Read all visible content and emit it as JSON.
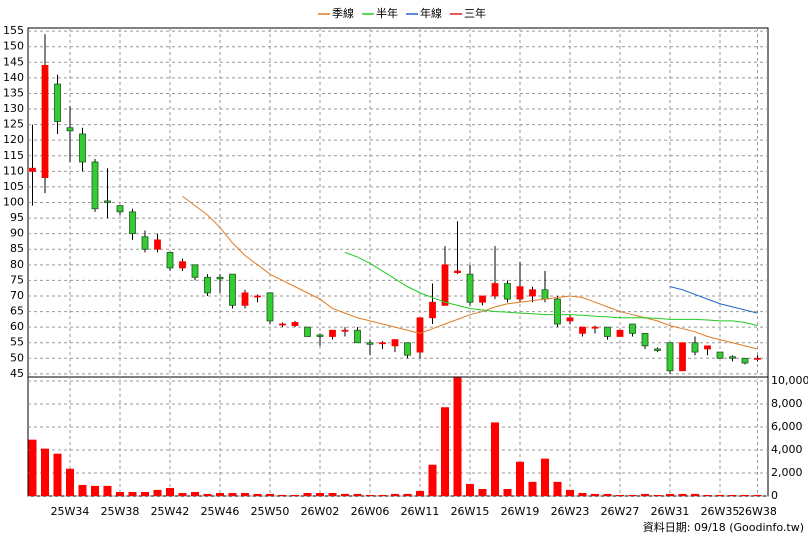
{
  "chart_data": {
    "type": "candlestick",
    "categories": [
      null,
      null,
      null,
      "25W34",
      null,
      null,
      null,
      "25W38",
      null,
      null,
      null,
      "25W42",
      null,
      null,
      null,
      "25W46",
      null,
      null,
      null,
      "25W50",
      null,
      null,
      null,
      "26W02",
      null,
      null,
      null,
      "26W06",
      null,
      null,
      null,
      "26W11",
      null,
      null,
      null,
      "26W15",
      null,
      null,
      null,
      "26W19",
      null,
      null,
      null,
      "26W23",
      null,
      null,
      null,
      "26W27",
      null,
      null,
      null,
      "26W31",
      null,
      null,
      null,
      "26W35",
      null,
      null,
      "26W38"
    ],
    "open": [
      110,
      108,
      138,
      124,
      122,
      113,
      100.5,
      99,
      97,
      89,
      85,
      84,
      79,
      80,
      76,
      76,
      77,
      67,
      70,
      71,
      61,
      60.5,
      60,
      57.5,
      57,
      59,
      59,
      55,
      55,
      54,
      55,
      52,
      63,
      67,
      77.5,
      77,
      68,
      70,
      74,
      69,
      70,
      72,
      69,
      62,
      58,
      60,
      60,
      57,
      61,
      58,
      53,
      55,
      46,
      55,
      53,
      52,
      50.5,
      50,
      50
    ],
    "high": [
      125,
      154,
      141,
      131,
      124,
      114,
      111,
      99,
      98,
      91,
      90,
      84,
      82,
      80,
      77,
      77,
      77,
      72,
      70.5,
      71,
      61.5,
      62,
      60,
      58,
      59,
      60,
      60,
      56,
      55.5,
      56,
      55,
      63,
      74,
      86,
      94,
      80,
      70,
      86,
      75,
      81,
      73,
      78,
      70,
      64,
      60,
      60.5,
      60,
      59,
      61,
      58,
      53.5,
      55,
      55,
      57,
      54,
      52,
      51,
      50,
      51
    ],
    "low": [
      99,
      103,
      122,
      113,
      110,
      97,
      95,
      96,
      88,
      84,
      84,
      78,
      78,
      75,
      70,
      71,
      66,
      66,
      68,
      61,
      60,
      60,
      57,
      54,
      56,
      57,
      55,
      51,
      53,
      52,
      50,
      50,
      61,
      67,
      77,
      67,
      67,
      69,
      68,
      68,
      68,
      68,
      60,
      61,
      57,
      58,
      56,
      57,
      57,
      53,
      52,
      45,
      46,
      51,
      51,
      50,
      49,
      48,
      49
    ],
    "close": [
      111,
      144,
      126,
      123,
      113,
      98,
      100,
      97,
      90,
      85,
      88,
      79,
      81,
      76,
      71,
      75.5,
      67,
      71,
      70,
      62,
      61,
      61.5,
      57,
      57,
      59,
      59,
      55,
      54.5,
      55,
      56,
      51,
      63,
      68,
      80,
      78,
      68,
      70,
      74,
      69,
      73,
      72,
      69,
      61,
      63,
      60,
      60,
      57,
      59,
      58,
      54,
      52.5,
      46,
      55,
      52,
      54,
      50,
      50,
      48.5,
      50
    ],
    "up_color": "#ff0000",
    "down_color": "#33cc33",
    "ylim": [
      44,
      156
    ],
    "yticks": [
      45,
      50,
      55,
      60,
      65,
      70,
      75,
      80,
      85,
      90,
      95,
      100,
      105,
      110,
      115,
      120,
      125,
      130,
      135,
      140,
      145,
      150,
      155
    ],
    "grid": true,
    "series": [
      {
        "name": "季線",
        "color": "#e07b24",
        "values": [
          null,
          null,
          null,
          null,
          null,
          null,
          null,
          null,
          null,
          null,
          null,
          null,
          102,
          99,
          96,
          92,
          87,
          83,
          80,
          77,
          75,
          73,
          71,
          69,
          66,
          64.5,
          63,
          62,
          61,
          60,
          59,
          58,
          59.5,
          61,
          62.5,
          64,
          65,
          66.5,
          67.5,
          68,
          68.5,
          69,
          69.5,
          70,
          69.5,
          68,
          66.5,
          65,
          64,
          63,
          62,
          60.5,
          59.5,
          58.5,
          57,
          56,
          55,
          54,
          53
        ]
      },
      {
        "name": "半年",
        "color": "#22cc22",
        "values": [
          null,
          null,
          null,
          null,
          null,
          null,
          null,
          null,
          null,
          null,
          null,
          null,
          null,
          null,
          null,
          null,
          null,
          null,
          null,
          null,
          null,
          null,
          null,
          null,
          null,
          84,
          82.5,
          80.5,
          78,
          75.5,
          73,
          71,
          69.5,
          68,
          67,
          66,
          65.5,
          65,
          64.8,
          64.5,
          64.3,
          64,
          64,
          64,
          63.8,
          63.5,
          63.3,
          63,
          63,
          63,
          62.8,
          62.5,
          62.5,
          62.5,
          62.3,
          62,
          62,
          61.5,
          60.5
        ]
      },
      {
        "name": "年線",
        "color": "#2266cc",
        "values": [
          null,
          null,
          null,
          null,
          null,
          null,
          null,
          null,
          null,
          null,
          null,
          null,
          null,
          null,
          null,
          null,
          null,
          null,
          null,
          null,
          null,
          null,
          null,
          null,
          null,
          null,
          null,
          null,
          null,
          null,
          null,
          null,
          null,
          null,
          null,
          null,
          null,
          null,
          null,
          null,
          null,
          null,
          null,
          null,
          null,
          null,
          null,
          null,
          null,
          null,
          null,
          73,
          72,
          70.5,
          69,
          67.5,
          66.5,
          65.5,
          64.5
        ]
      },
      {
        "name": "三年",
        "color": "#dd2222",
        "values": [
          null,
          null,
          null,
          null,
          null,
          null,
          null,
          null,
          null,
          null,
          null,
          null,
          null,
          null,
          null,
          null,
          null,
          null,
          null,
          null,
          null,
          null,
          null,
          null,
          null,
          null,
          null,
          null,
          null,
          null,
          null,
          null,
          null,
          null,
          null,
          null,
          null,
          null,
          null,
          null,
          null,
          null,
          null,
          null,
          null,
          null,
          null,
          null,
          null,
          null,
          null,
          null,
          null,
          null,
          null,
          null,
          null,
          null,
          null
        ]
      }
    ],
    "volume": {
      "color": "#ff0000",
      "values": [
        4900,
        4120,
        3680,
        2370,
        960,
        880,
        880,
        350,
        350,
        350,
        530,
        700,
        260,
        350,
        180,
        260,
        260,
        260,
        180,
        180,
        90,
        90,
        260,
        260,
        260,
        180,
        180,
        90,
        90,
        180,
        180,
        440,
        2720,
        7720,
        10300,
        1050,
        610,
        6400,
        610,
        2980,
        1230,
        3250,
        1230,
        530,
        260,
        180,
        180,
        90,
        90,
        180,
        90,
        180,
        180,
        180,
        90,
        90,
        90,
        90,
        90
      ],
      "ylim": [
        0,
        10350
      ],
      "yticks": [
        0,
        {
          "value": 2000,
          "label": "2,000"
        },
        {
          "value": 4000,
          "label": "4,000"
        },
        {
          "value": 6000,
          "label": "6,000"
        },
        {
          "value": 8000,
          "label": "8,000"
        },
        {
          "value": 10000,
          "label": "10,000"
        }
      ]
    },
    "footnote": "資料日期: 09/18 (Goodinfo.tw)"
  }
}
